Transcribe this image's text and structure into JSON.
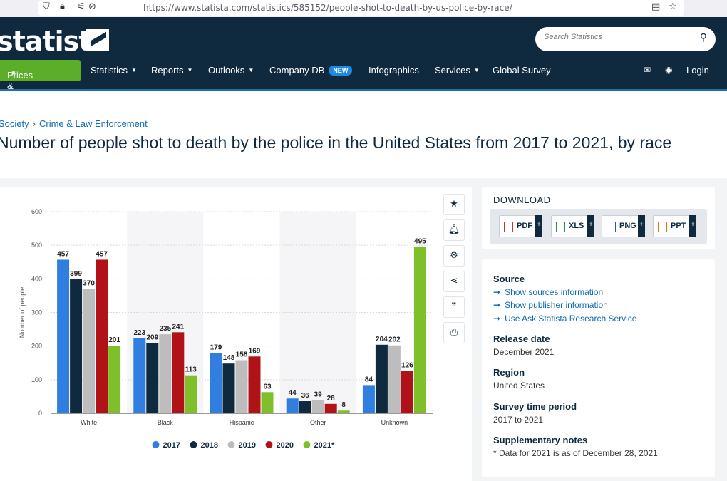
{
  "browser": {
    "url": "https://www.statista.com/statistics/585152/people-shot-to-death-by-us-police-by-race/"
  },
  "header": {
    "logo": "statista",
    "search_placeholder": "Search Statistics",
    "nav": [
      {
        "label": "Prices & Access"
      },
      {
        "label": "Statistics"
      },
      {
        "label": "Reports"
      },
      {
        "label": "Outlooks"
      },
      {
        "label": "Company DB"
      },
      {
        "label": "Infographics"
      },
      {
        "label": "Services"
      },
      {
        "label": "Global Survey"
      }
    ],
    "new_badge": "NEW",
    "login": "Login"
  },
  "breadcrumb": {
    "parent": "Society",
    "child": "Crime & Law Enforcement"
  },
  "page_title": "Number of people shot to death by the police in the United States from 2017 to 2021, by race",
  "download": {
    "title": "DOWNLOAD",
    "buttons": [
      {
        "label": "PDF",
        "color": "#c0392b"
      },
      {
        "label": "XLS",
        "color": "#2e8b57"
      },
      {
        "label": "PNG",
        "color": "#2c5aa0"
      },
      {
        "label": "PPT",
        "color": "#e07a1f"
      }
    ]
  },
  "info": {
    "source_title": "Source",
    "links": [
      "Show sources information",
      "Show publisher information",
      "Use Ask Statista Research Service"
    ],
    "release_title": "Release date",
    "release": "December 2021",
    "region_title": "Region",
    "region": "United States",
    "period_title": "Survey time period",
    "period": "2017 to 2021",
    "notes_title": "Supplementary notes",
    "notes": "* Data for 2021 is as of December 28, 2021"
  },
  "chart_data": {
    "type": "bar",
    "categories": [
      "White",
      "Black",
      "Hispanic",
      "Other",
      "Unknown"
    ],
    "series": [
      {
        "name": "2017",
        "color": "#2f7ee0",
        "values": [
          457,
          223,
          179,
          44,
          84
        ]
      },
      {
        "name": "2018",
        "color": "#0f2a3f",
        "values": [
          399,
          209,
          148,
          36,
          204
        ]
      },
      {
        "name": "2019",
        "color": "#bdbdbd",
        "values": [
          370,
          235,
          158,
          39,
          202
        ]
      },
      {
        "name": "2020",
        "color": "#b01217",
        "values": [
          457,
          241,
          169,
          28,
          126
        ]
      },
      {
        "name": "2021*",
        "color": "#7fbf2a",
        "values": [
          201,
          113,
          63,
          8,
          495
        ]
      }
    ],
    "ylabel": "Number of people",
    "ylim": [
      0,
      600
    ],
    "yticks": [
      0,
      100,
      200,
      300,
      400,
      500,
      600
    ],
    "grid": true,
    "legend_position": "bottom-center"
  }
}
